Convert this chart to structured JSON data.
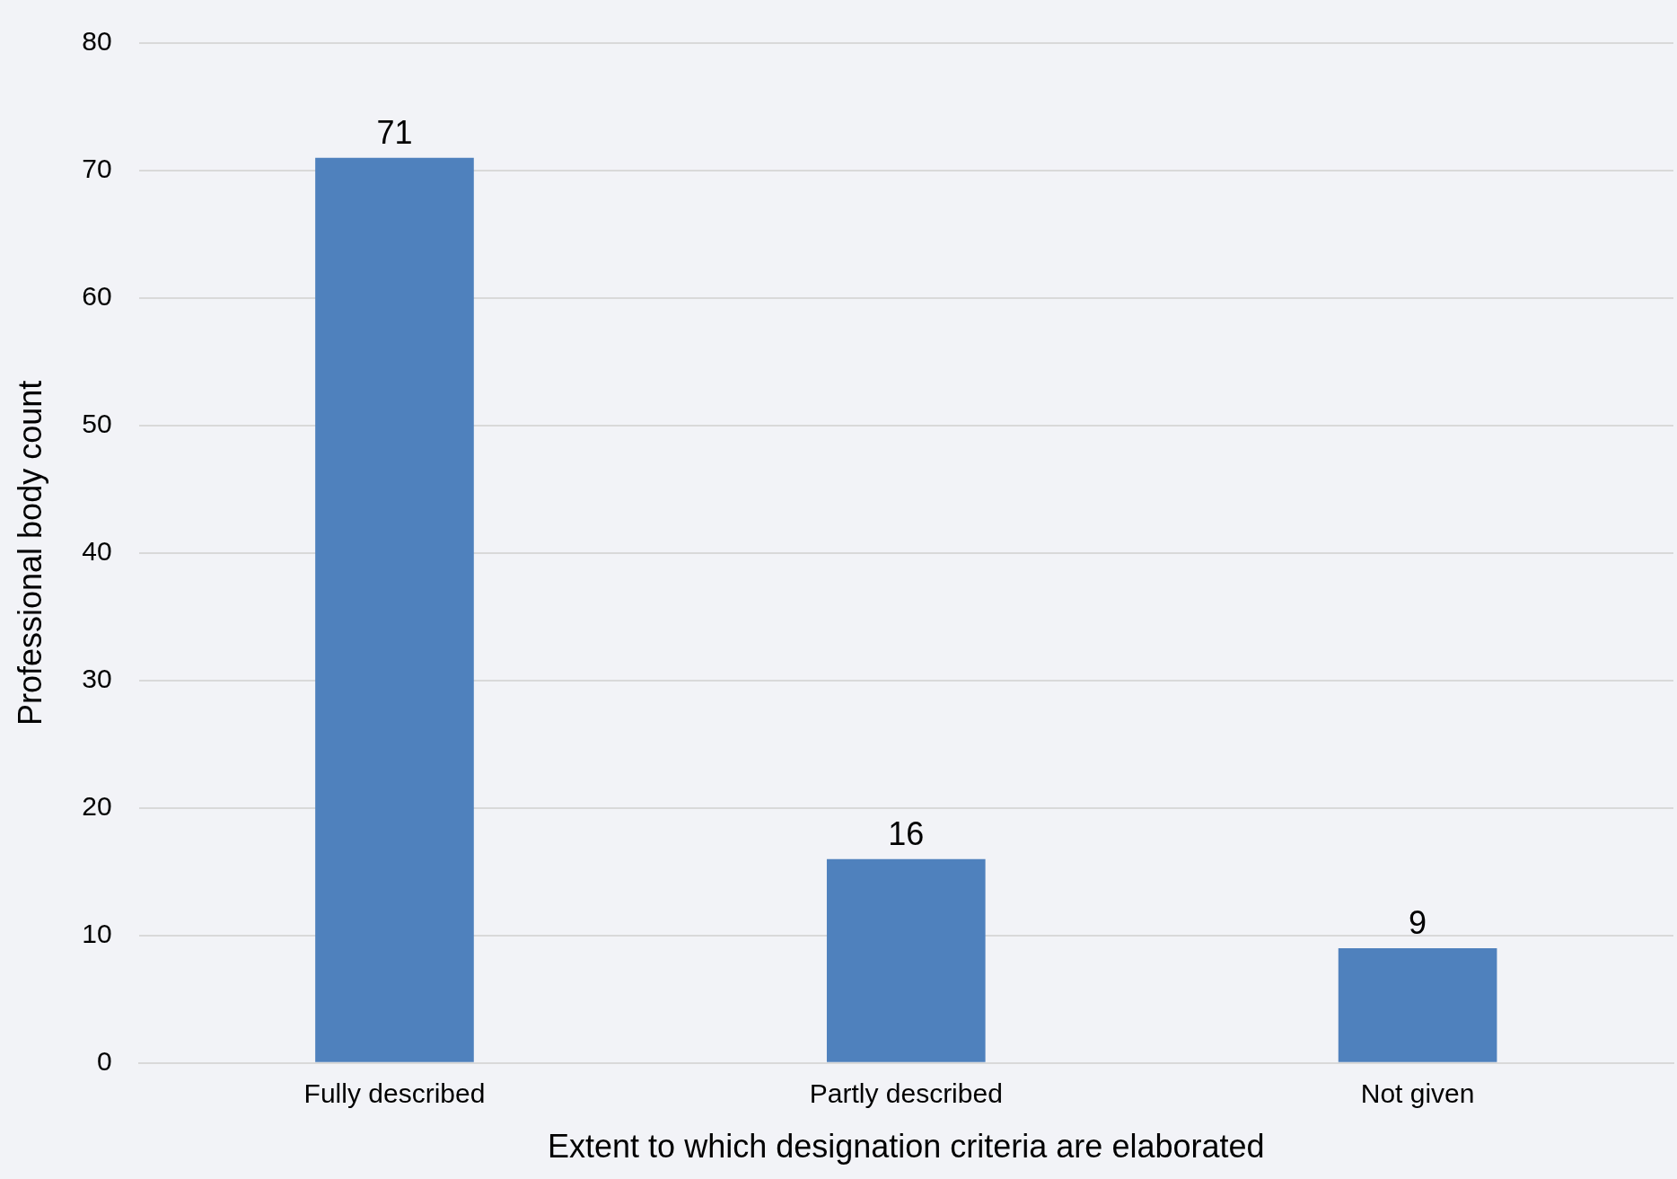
{
  "chart_data": {
    "type": "bar",
    "xlabel": "Extent to which designation criteria are elaborated",
    "ylabel": "Professional body count",
    "categories": [
      "Fully described",
      "Partly described",
      "Not given"
    ],
    "values": [
      71,
      16,
      9
    ],
    "color": "#4f81bd",
    "ylim": [
      0,
      80
    ],
    "yticks": [
      0,
      10,
      20,
      30,
      40,
      50,
      60,
      70,
      80
    ],
    "grid": "y",
    "data_labels": true
  }
}
